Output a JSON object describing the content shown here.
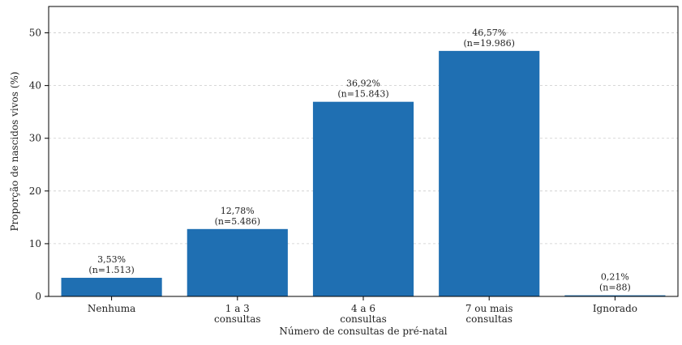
{
  "chart_data": {
    "type": "bar",
    "title": "",
    "xlabel": "Número de consultas de pré-natal",
    "ylabel": "Proporção de nascidos vivos (%)",
    "categories": [
      [
        "Nenhuma"
      ],
      [
        "1 a 3",
        "consultas"
      ],
      [
        "4 a 6",
        "consultas"
      ],
      [
        "7 ou mais",
        "consultas"
      ],
      [
        "Ignorado"
      ]
    ],
    "values": [
      3.53,
      12.78,
      36.92,
      46.57,
      0.21
    ],
    "bar_labels": [
      [
        "3,53%",
        "(n=1.513)"
      ],
      [
        "12,78%",
        "(n=5.486)"
      ],
      [
        "36,92%",
        "(n=15.843)"
      ],
      [
        "46,57%",
        "(n=19.986)"
      ],
      [
        "0,21%",
        "(n=88)"
      ]
    ],
    "yticks": [
      0,
      10,
      20,
      30,
      40,
      50
    ],
    "ylim": [
      0,
      55
    ],
    "grid": "horizontal dashed",
    "bar_color": "#1f6fb2"
  }
}
